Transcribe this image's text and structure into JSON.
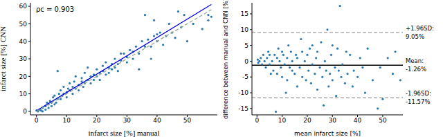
{
  "chart_data": [
    {
      "type": "scatter",
      "x_label": "infarct size [%] manual",
      "y_label": "infarct size [%] CNN",
      "annotations": [
        {
          "text": "ρc = 0.903"
        }
      ],
      "xlim": [
        -2,
        60
      ],
      "xticks": [
        0,
        10,
        20,
        30,
        40,
        50
      ],
      "ylim": [
        -2,
        62
      ],
      "yticks": [
        0,
        10,
        20,
        30,
        40,
        50,
        60
      ],
      "grid": false,
      "series": [
        {
          "type": "scatter",
          "marker": "circle",
          "color": "#2a7ab0",
          "x": [
            0,
            0.5,
            1,
            1.5,
            2,
            2,
            3,
            3,
            3.5,
            4,
            4,
            4.5,
            5,
            5,
            5.5,
            6,
            6,
            6.5,
            7,
            7,
            7.5,
            8,
            8,
            8.5,
            9,
            9,
            10,
            10,
            10.5,
            11,
            11,
            12,
            12,
            12.5,
            13,
            13,
            14,
            14,
            15,
            15,
            15.5,
            16,
            16,
            17,
            17,
            18,
            18,
            19,
            19,
            20,
            20,
            21,
            21,
            22,
            22,
            23,
            23,
            24,
            24,
            25,
            25,
            26,
            26,
            27,
            27,
            28,
            28,
            29,
            30,
            30,
            31,
            32,
            32,
            33,
            34,
            34,
            35,
            36,
            36,
            37,
            38,
            38,
            39,
            39,
            40,
            40,
            41,
            42,
            43,
            44,
            45,
            46,
            47,
            48,
            49,
            50,
            52,
            55,
            57,
            57,
            58
          ],
          "values": [
            0.5,
            0,
            1,
            0.5,
            2,
            0,
            1,
            3,
            5,
            2,
            4,
            6,
            3,
            5,
            8,
            4,
            9,
            5,
            7,
            23,
            10,
            7,
            12,
            9,
            10,
            14,
            8,
            11,
            13,
            12,
            16,
            10,
            14,
            17,
            13,
            20,
            15,
            12,
            17,
            19,
            14,
            16,
            22,
            18,
            25,
            16,
            20,
            21,
            18,
            20,
            24,
            22,
            18,
            23,
            26,
            21,
            28,
            25,
            22,
            27,
            24,
            30,
            25,
            27,
            23,
            33,
            29,
            33,
            31,
            28,
            35,
            30,
            34,
            37,
            24,
            33,
            40,
            37,
            55,
            41,
            37,
            30,
            43,
            52,
            44,
            40,
            45,
            38,
            43,
            50,
            45,
            42,
            57,
            48,
            55,
            40,
            50,
            47,
            52,
            55,
            54
          ]
        },
        {
          "type": "line",
          "line_style": "solid",
          "color": "#0000e0",
          "x": [
            0,
            58
          ],
          "values": [
            0.3,
            61
          ]
        },
        {
          "type": "line",
          "line_style": "dashed",
          "color": "#8fa88f",
          "x": [
            0,
            58
          ],
          "values": [
            0,
            58
          ]
        }
      ]
    },
    {
      "type": "scatter",
      "x_label": "mean infarct size [%]",
      "y_label": "difference between manual and CNN [%]",
      "xlim": [
        -2,
        58
      ],
      "xticks": [
        0,
        10,
        20,
        30,
        40,
        50
      ],
      "ylim": [
        -17,
        18.5
      ],
      "yticks": [
        -15,
        -10,
        -5,
        0,
        5,
        10,
        15
      ],
      "grid": false,
      "reference_lines": [
        {
          "label": "+1.96SD:",
          "value": 9.05,
          "value_label": "9.05%",
          "line_style": "dashed",
          "color": "#808080"
        },
        {
          "label": "Mean:",
          "value": -1.26,
          "value_label": "-1.26%",
          "line_style": "solid",
          "color": "#000000"
        },
        {
          "label": "-1.96SD:",
          "value": -11.57,
          "value_label": "-11.57%",
          "line_style": "dashed",
          "color": "#808080"
        }
      ],
      "series": [
        {
          "type": "scatter",
          "marker": "circle",
          "color": "#2a7ab0",
          "x": [
            0.3,
            0.5,
            1,
            1.5,
            2,
            2.5,
            3,
            3.5,
            4,
            4.5,
            5,
            5,
            5.5,
            6,
            6.5,
            7,
            7.5,
            8,
            8,
            8.5,
            9,
            9.5,
            10,
            10,
            10.5,
            11,
            11.5,
            12,
            12,
            12.5,
            13,
            13.5,
            14,
            14,
            15,
            15.5,
            16,
            16,
            17,
            17.5,
            18,
            18,
            19,
            19.5,
            20,
            20.5,
            21,
            21.5,
            22,
            22,
            23,
            23.5,
            24,
            24,
            25,
            25.5,
            26,
            26.5,
            27,
            27.5,
            28,
            28.5,
            29,
            29.5,
            30,
            30,
            31,
            31.5,
            32,
            32.5,
            33,
            33.5,
            34,
            35,
            35.5,
            36,
            37,
            38,
            38.5,
            40,
            41,
            42,
            43,
            44,
            46,
            48,
            49,
            50,
            52,
            54,
            55,
            57
          ],
          "values": [
            0.5,
            -0.5,
            0,
            1,
            -1,
            2,
            0,
            -2,
            1,
            3,
            -1,
            2,
            -4,
            0,
            -3,
            2,
            -16,
            1,
            -4,
            4,
            0,
            -2,
            3,
            -5,
            2,
            -1,
            -10,
            1,
            -6,
            5,
            -2,
            3,
            -3,
            0,
            -4,
            2,
            -8,
            1,
            -2,
            7,
            -5,
            3,
            0,
            -6,
            2,
            -3,
            4,
            -7,
            -1,
            5,
            -4,
            1,
            -9,
            3,
            -2,
            6,
            -5,
            -14,
            0,
            -3,
            10,
            -8,
            -4,
            2,
            -6,
            5,
            -2,
            -11,
            4,
            -3,
            17.5,
            -5,
            -1,
            -7,
            3,
            -4,
            2,
            -8,
            -3,
            -5,
            1,
            -2,
            -10,
            4,
            -6,
            -15,
            -2,
            -12,
            1,
            -4,
            3,
            -6
          ]
        }
      ]
    }
  ]
}
